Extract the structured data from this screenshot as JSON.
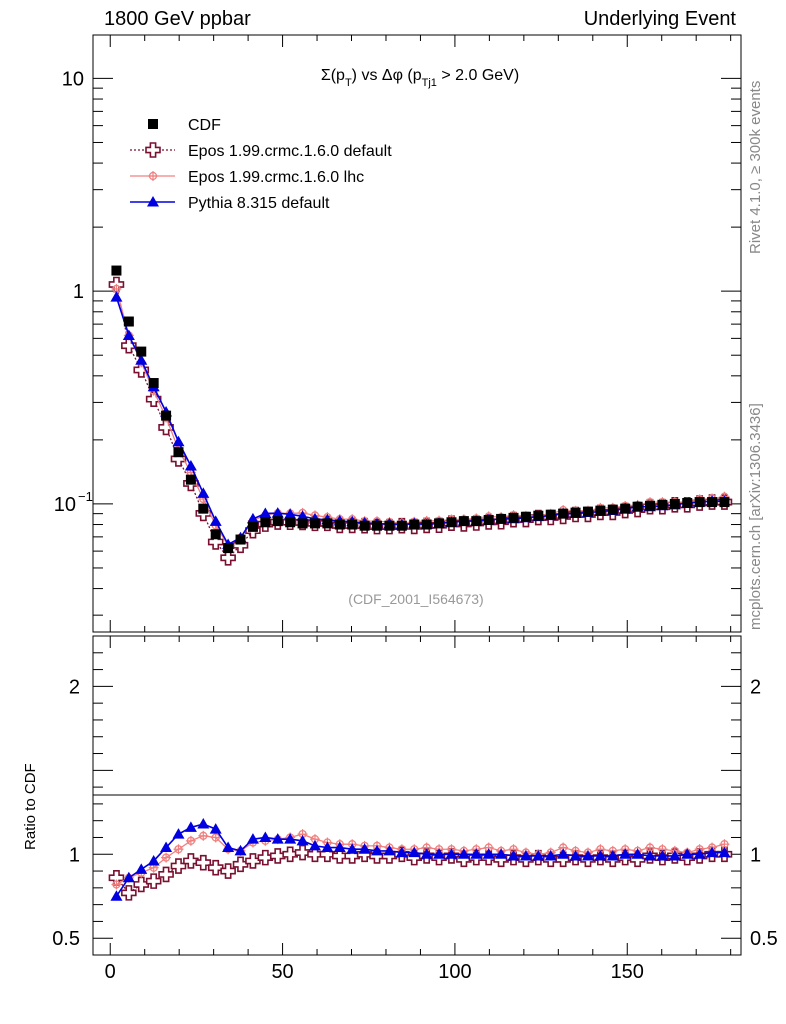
{
  "header": {
    "left": "1800 GeV ppbar",
    "right": "Underlying Event"
  },
  "side_labels": {
    "rivet": "Rivet 4.1.0, ≥ 300k events",
    "mcplots": "mcplots.cern.ch [arXiv:1306.3436]"
  },
  "chart_data": {
    "type": "scatter",
    "title": "Σ(p_T) vs Δφ (p_Tj1 > 2.0 GeV)",
    "title_parts": {
      "a": "Σ(p",
      "sub1": "T",
      "b": ") vs Δφ (p",
      "sub2": "Tj1",
      "c": " > 2.0 GeV)"
    },
    "watermark": "(CDF_2001_I564673)",
    "xlim": [
      -5,
      183
    ],
    "ylim_main": [
      0.025,
      16
    ],
    "ylim_ratio": [
      0.4,
      2.3
    ],
    "ylabel_ratio": "Ratio to CDF",
    "main_yticks": [
      {
        "v": 10,
        "label": "10"
      },
      {
        "v": 1,
        "label": "1"
      },
      {
        "v": 0.1,
        "label": "10",
        "sup": "−1"
      }
    ],
    "ratio_yticks": [
      {
        "v": 2,
        "label": "2"
      },
      {
        "v": 1,
        "label": "1"
      },
      {
        "v": 0.5,
        "label": "0.5"
      }
    ],
    "xticks": [
      {
        "v": 0,
        "label": "0"
      },
      {
        "v": 50,
        "label": "50"
      },
      {
        "v": 100,
        "label": "100"
      },
      {
        "v": 150,
        "label": "150"
      }
    ],
    "x": [
      1.8,
      5.4,
      9.0,
      12.6,
      16.2,
      19.8,
      23.4,
      27.0,
      30.6,
      34.2,
      37.8,
      41.4,
      45.0,
      48.6,
      52.2,
      55.8,
      59.4,
      63.0,
      66.6,
      70.2,
      73.8,
      77.4,
      81.0,
      84.6,
      88.2,
      91.8,
      95.4,
      99.0,
      102.6,
      106.2,
      109.8,
      113.4,
      117.0,
      120.6,
      124.2,
      127.8,
      131.4,
      135.0,
      138.6,
      142.2,
      145.8,
      149.4,
      153.0,
      156.6,
      160.2,
      163.8,
      167.4,
      171.0,
      174.6,
      178.2
    ],
    "series": [
      {
        "name": "CDF",
        "color": "#000000",
        "values": [
          1.25,
          0.72,
          0.52,
          0.37,
          0.26,
          0.175,
          0.13,
          0.095,
          0.072,
          0.062,
          0.068,
          0.078,
          0.082,
          0.083,
          0.082,
          0.081,
          0.081,
          0.081,
          0.08,
          0.08,
          0.079,
          0.079,
          0.079,
          0.079,
          0.08,
          0.08,
          0.081,
          0.082,
          0.083,
          0.083,
          0.084,
          0.085,
          0.086,
          0.087,
          0.088,
          0.089,
          0.09,
          0.091,
          0.092,
          0.093,
          0.094,
          0.095,
          0.097,
          0.098,
          0.099,
          0.1,
          0.101,
          0.102,
          0.102,
          0.102
        ]
      },
      {
        "name": "Epos 1.99.crmc.1.6.0 default",
        "color": "#7a1030",
        "ratio": [
          0.86,
          0.77,
          0.82,
          0.84,
          0.88,
          0.93,
          0.96,
          0.95,
          0.92,
          0.9,
          0.94,
          0.96,
          0.98,
          0.99,
          1.0,
          1.01,
          1.0,
          1.0,
          0.99,
          0.99,
          1.0,
          0.99,
          0.99,
          1.0,
          0.98,
          0.99,
          0.98,
          0.99,
          0.97,
          0.98,
          0.98,
          0.97,
          0.98,
          0.97,
          0.98,
          0.97,
          0.97,
          0.98,
          0.97,
          0.98,
          0.97,
          0.98,
          0.97,
          0.99,
          0.98,
          0.99,
          0.98,
          0.99,
          1.0,
          1.0
        ]
      },
      {
        "name": "Epos 1.99.crmc.1.6.0 lhc",
        "color": "#f08080",
        "ratio": [
          0.82,
          0.86,
          0.89,
          0.92,
          0.98,
          1.03,
          1.08,
          1.11,
          1.1,
          1.03,
          1.02,
          1.07,
          1.08,
          1.09,
          1.1,
          1.12,
          1.09,
          1.07,
          1.06,
          1.06,
          1.05,
          1.05,
          1.04,
          1.03,
          1.03,
          1.04,
          1.03,
          1.03,
          1.02,
          1.03,
          1.04,
          1.02,
          1.03,
          1.01,
          1.0,
          1.01,
          1.04,
          1.02,
          1.01,
          1.03,
          1.02,
          1.03,
          1.02,
          1.04,
          1.03,
          1.02,
          1.01,
          1.03,
          1.04,
          1.06
        ]
      },
      {
        "name": "Pythia 8.315 default",
        "color": "#0000e0",
        "ratio": [
          0.75,
          0.86,
          0.91,
          0.96,
          1.04,
          1.12,
          1.16,
          1.18,
          1.15,
          1.04,
          1.02,
          1.09,
          1.1,
          1.09,
          1.09,
          1.08,
          1.05,
          1.04,
          1.04,
          1.03,
          1.03,
          1.02,
          1.02,
          1.01,
          1.01,
          1.0,
          1.0,
          1.0,
          1.0,
          1.0,
          1.0,
          1.0,
          0.99,
          0.99,
          0.99,
          0.99,
          1.0,
          0.99,
          0.99,
          0.99,
          0.99,
          1.0,
          1.0,
          0.99,
          0.99,
          0.99,
          1.0,
          1.0,
          1.01,
          1.01
        ]
      }
    ]
  }
}
